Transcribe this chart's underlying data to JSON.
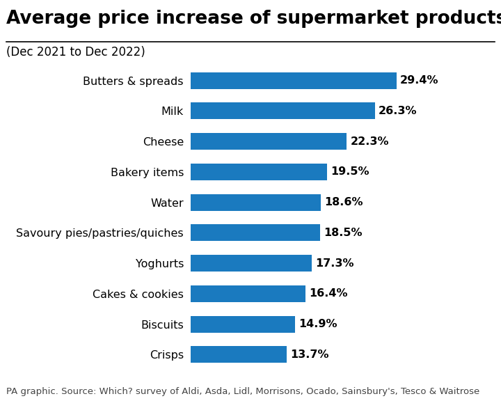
{
  "title": "Average price increase of supermarket products",
  "subtitle": "(Dec 2021 to Dec 2022)",
  "categories": [
    "Crisps",
    "Biscuits",
    "Cakes & cookies",
    "Yoghurts",
    "Savoury pies/pastries/quiches",
    "Water",
    "Bakery items",
    "Cheese",
    "Milk",
    "Butters & spreads"
  ],
  "values": [
    13.7,
    14.9,
    16.4,
    17.3,
    18.5,
    18.6,
    19.5,
    22.3,
    26.3,
    29.4
  ],
  "bar_color": "#1a7abf",
  "background_color": "#ffffff",
  "label_color": "#000000",
  "value_color": "#000000",
  "title_fontsize": 19,
  "subtitle_fontsize": 12,
  "category_fontsize": 11.5,
  "value_fontsize": 11.5,
  "footer_text": "PA graphic. Source: Which? survey of Aldi, Asda, Lidl, Morrisons, Ocado, Sainsbury's, Tesco & Waitrose",
  "footer_fontsize": 9.5,
  "xlim": [
    0,
    35
  ]
}
